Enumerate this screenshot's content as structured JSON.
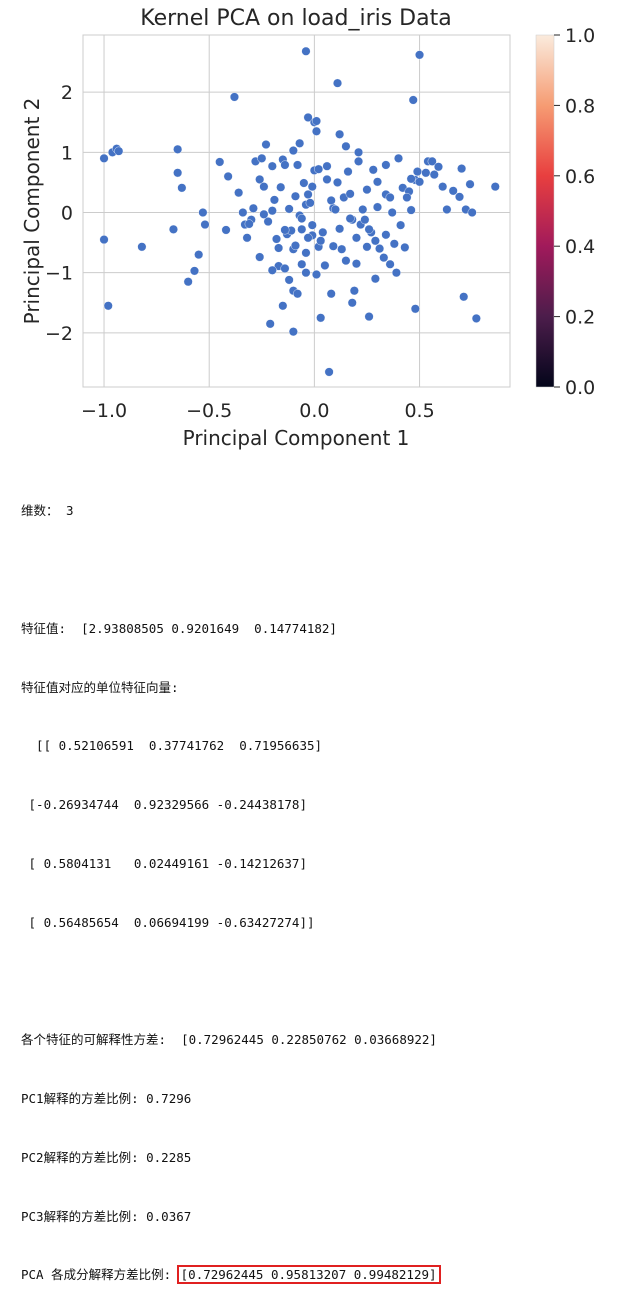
{
  "chart_data": {
    "type": "scatter",
    "title": "Kernel PCA on load_iris Data",
    "xlabel": "Principal Component 1",
    "ylabel": "Principal Component 2",
    "xlim": [
      -1.1,
      0.93
    ],
    "ylim": [
      -2.9,
      2.95
    ],
    "xticks": [
      -1.0,
      -0.5,
      0.0,
      0.5
    ],
    "xtick_labels": [
      "−1.0",
      "−0.5",
      "0.0",
      "0.5"
    ],
    "yticks": [
      -2,
      -1,
      0,
      1,
      2
    ],
    "ytick_labels": [
      "−2",
      "−1",
      "0",
      "1",
      "2"
    ],
    "grid": true,
    "point_color": "#4472c4",
    "colorbar": {
      "range": [
        0.0,
        1.0
      ],
      "ticks": [
        "0.0",
        "0.2",
        "0.4",
        "0.6",
        "0.8",
        "1.0"
      ],
      "colormap": "rocket",
      "colors": [
        "#03051a",
        "#4c1d4b",
        "#a11a5b",
        "#e83f3f",
        "#f69c73",
        "#faebdd"
      ]
    },
    "points": [
      [
        -0.96,
        1.0
      ],
      [
        -0.94,
        1.06
      ],
      [
        -0.93,
        1.02
      ],
      [
        -1.0,
        0.9
      ],
      [
        -1.0,
        -0.45
      ],
      [
        -0.98,
        -1.55
      ],
      [
        -0.82,
        -0.57
      ],
      [
        -0.67,
        -0.28
      ],
      [
        -0.65,
        1.05
      ],
      [
        -0.65,
        0.66
      ],
      [
        -0.63,
        0.41
      ],
      [
        -0.6,
        -1.15
      ],
      [
        -0.57,
        -0.97
      ],
      [
        -0.55,
        -0.7
      ],
      [
        -0.53,
        0.0
      ],
      [
        -0.52,
        -0.2
      ],
      [
        -0.45,
        0.84
      ],
      [
        -0.41,
        0.6
      ],
      [
        -0.38,
        1.92
      ],
      [
        -0.36,
        0.33
      ],
      [
        -0.34,
        0.0
      ],
      [
        -0.33,
        -0.2
      ],
      [
        -0.32,
        -0.42
      ],
      [
        -0.3,
        -0.12
      ],
      [
        -0.29,
        0.07
      ],
      [
        -0.28,
        0.85
      ],
      [
        -0.26,
        0.55
      ],
      [
        -0.25,
        0.9
      ],
      [
        -0.24,
        0.43
      ],
      [
        -0.23,
        1.13
      ],
      [
        -0.22,
        -0.15
      ],
      [
        -0.21,
        -1.85
      ],
      [
        -0.2,
        0.03
      ],
      [
        -0.19,
        0.21
      ],
      [
        -0.18,
        -0.44
      ],
      [
        -0.17,
        -0.89
      ],
      [
        -0.16,
        0.42
      ],
      [
        -0.15,
        -1.55
      ],
      [
        -0.15,
        0.88
      ],
      [
        -0.14,
        -0.93
      ],
      [
        -0.13,
        -0.36
      ],
      [
        -0.12,
        0.06
      ],
      [
        -0.11,
        -0.3
      ],
      [
        -0.1,
        -1.3
      ],
      [
        -0.1,
        -0.61
      ],
      [
        -0.09,
        0.27
      ],
      [
        -0.08,
        0.79
      ],
      [
        -0.07,
        -0.05
      ],
      [
        -0.07,
        1.15
      ],
      [
        -0.06,
        -0.1
      ],
      [
        -0.05,
        0.49
      ],
      [
        -0.04,
        -0.67
      ],
      [
        -0.04,
        -1.0
      ],
      [
        -0.04,
        0.13
      ],
      [
        -0.03,
        0.3
      ],
      [
        -0.02,
        0.16
      ],
      [
        -0.01,
        -0.21
      ],
      [
        -0.01,
        -0.38
      ],
      [
        0.0,
        1.5
      ],
      [
        0.0,
        0.7
      ],
      [
        -0.1,
        -1.98
      ],
      [
        -0.12,
        -1.12
      ],
      [
        -0.08,
        -1.35
      ],
      [
        -0.06,
        -0.86
      ],
      [
        -0.03,
        -0.42
      ],
      [
        -0.01,
        0.43
      ],
      [
        0.01,
        1.35
      ],
      [
        0.02,
        0.72
      ],
      [
        0.02,
        -0.57
      ],
      [
        0.03,
        -1.75
      ],
      [
        0.04,
        -0.33
      ],
      [
        0.05,
        -0.88
      ],
      [
        0.06,
        0.55
      ],
      [
        0.06,
        0.77
      ],
      [
        0.07,
        -2.65
      ],
      [
        0.08,
        0.2
      ],
      [
        0.08,
        -1.35
      ],
      [
        0.09,
        0.07
      ],
      [
        0.1,
        0.05
      ],
      [
        0.11,
        0.5
      ],
      [
        0.11,
        2.15
      ],
      [
        0.12,
        -0.27
      ],
      [
        0.13,
        -0.61
      ],
      [
        0.14,
        0.25
      ],
      [
        0.15,
        -0.8
      ],
      [
        0.16,
        0.68
      ],
      [
        0.17,
        0.31
      ],
      [
        0.18,
        -1.5
      ],
      [
        0.18,
        -0.12
      ],
      [
        0.19,
        -1.3
      ],
      [
        0.2,
        -0.85
      ],
      [
        0.2,
        -0.42
      ],
      [
        0.21,
        0.85
      ],
      [
        0.22,
        -0.2
      ],
      [
        0.23,
        0.05
      ],
      [
        0.24,
        -0.12
      ],
      [
        0.25,
        -0.57
      ],
      [
        0.25,
        0.38
      ],
      [
        0.26,
        -1.73
      ],
      [
        0.27,
        -0.33
      ],
      [
        0.28,
        0.71
      ],
      [
        0.29,
        -1.1
      ],
      [
        0.3,
        0.09
      ],
      [
        0.31,
        -0.6
      ],
      [
        0.33,
        -0.75
      ],
      [
        0.34,
        0.3
      ],
      [
        0.36,
        -0.86
      ],
      [
        0.37,
        0.0
      ],
      [
        0.38,
        -0.52
      ],
      [
        0.39,
        -1.0
      ],
      [
        0.4,
        0.9
      ],
      [
        0.41,
        -0.21
      ],
      [
        0.42,
        0.41
      ],
      [
        0.43,
        -0.58
      ],
      [
        0.45,
        0.35
      ],
      [
        0.46,
        0.04
      ],
      [
        0.47,
        1.87
      ],
      [
        0.48,
        -1.6
      ],
      [
        0.48,
        0.54
      ],
      [
        0.49,
        0.68
      ],
      [
        0.5,
        0.51
      ],
      [
        0.5,
        2.62
      ],
      [
        0.53,
        0.66
      ],
      [
        0.54,
        0.85
      ],
      [
        0.56,
        0.85
      ],
      [
        0.57,
        0.63
      ],
      [
        0.59,
        0.76
      ],
      [
        0.61,
        0.43
      ],
      [
        0.63,
        0.05
      ],
      [
        0.66,
        0.36
      ],
      [
        0.69,
        0.26
      ],
      [
        0.7,
        0.73
      ],
      [
        0.71,
        -1.4
      ],
      [
        0.72,
        0.05
      ],
      [
        0.74,
        0.47
      ],
      [
        0.75,
        0.0
      ],
      [
        0.77,
        -1.76
      ],
      [
        0.86,
        0.43
      ],
      [
        -0.04,
        2.68
      ],
      [
        -0.03,
        1.58
      ],
      [
        0.01,
        1.52
      ],
      [
        -0.1,
        1.03
      ],
      [
        -0.14,
        0.79
      ],
      [
        -0.2,
        0.77
      ],
      [
        0.12,
        1.3
      ],
      [
        0.15,
        1.1
      ],
      [
        0.21,
        1.0
      ],
      [
        0.3,
        0.51
      ],
      [
        0.34,
        0.79
      ],
      [
        0.36,
        0.25
      ],
      [
        0.44,
        0.25
      ],
      [
        0.46,
        0.56
      ],
      [
        0.26,
        -0.28
      ],
      [
        0.29,
        -0.47
      ],
      [
        0.34,
        -0.37
      ],
      [
        0.17,
        -0.1
      ],
      [
        -0.26,
        -0.74
      ],
      [
        -0.06,
        -0.28
      ],
      [
        -0.17,
        -0.59
      ],
      [
        0.01,
        -1.03
      ],
      [
        0.03,
        -0.47
      ],
      [
        0.09,
        -0.56
      ],
      [
        -0.2,
        -0.96
      ],
      [
        -0.09,
        -0.55
      ],
      [
        -0.31,
        -0.19
      ],
      [
        -0.42,
        -0.29
      ],
      [
        -0.24,
        -0.03
      ],
      [
        -0.14,
        -0.29
      ]
    ]
  },
  "output": {
    "dims_line": "维数： 3",
    "eigval_line": "特征值:  [2.93808505 0.9201649  0.14774182]",
    "eigvec_header": "特征值对应的单位特征向量:",
    "eigvec_rows": [
      "  [[ 0.52106591  0.37741762  0.71956635]",
      " [-0.26934744  0.92329566 -0.24438178]",
      " [ 0.5804131   0.02449161 -0.14212637]",
      " [ 0.56485654  0.06694199 -0.63427274]]"
    ],
    "explained_line": "各个特征的可解释性方差:  [0.72962445 0.22850762 0.03668922]",
    "pc_lines": [
      "PC1解释的方差比例: 0.7296",
      "PC2解释的方差比例: 0.2285",
      "PC3解释的方差比例: 0.0367"
    ],
    "cumulative_label": "PCA 各成分解释方差比例: ",
    "cumulative_value": "[0.72962445 0.95813207 0.99482129]",
    "highlight_color": "#e02020"
  }
}
